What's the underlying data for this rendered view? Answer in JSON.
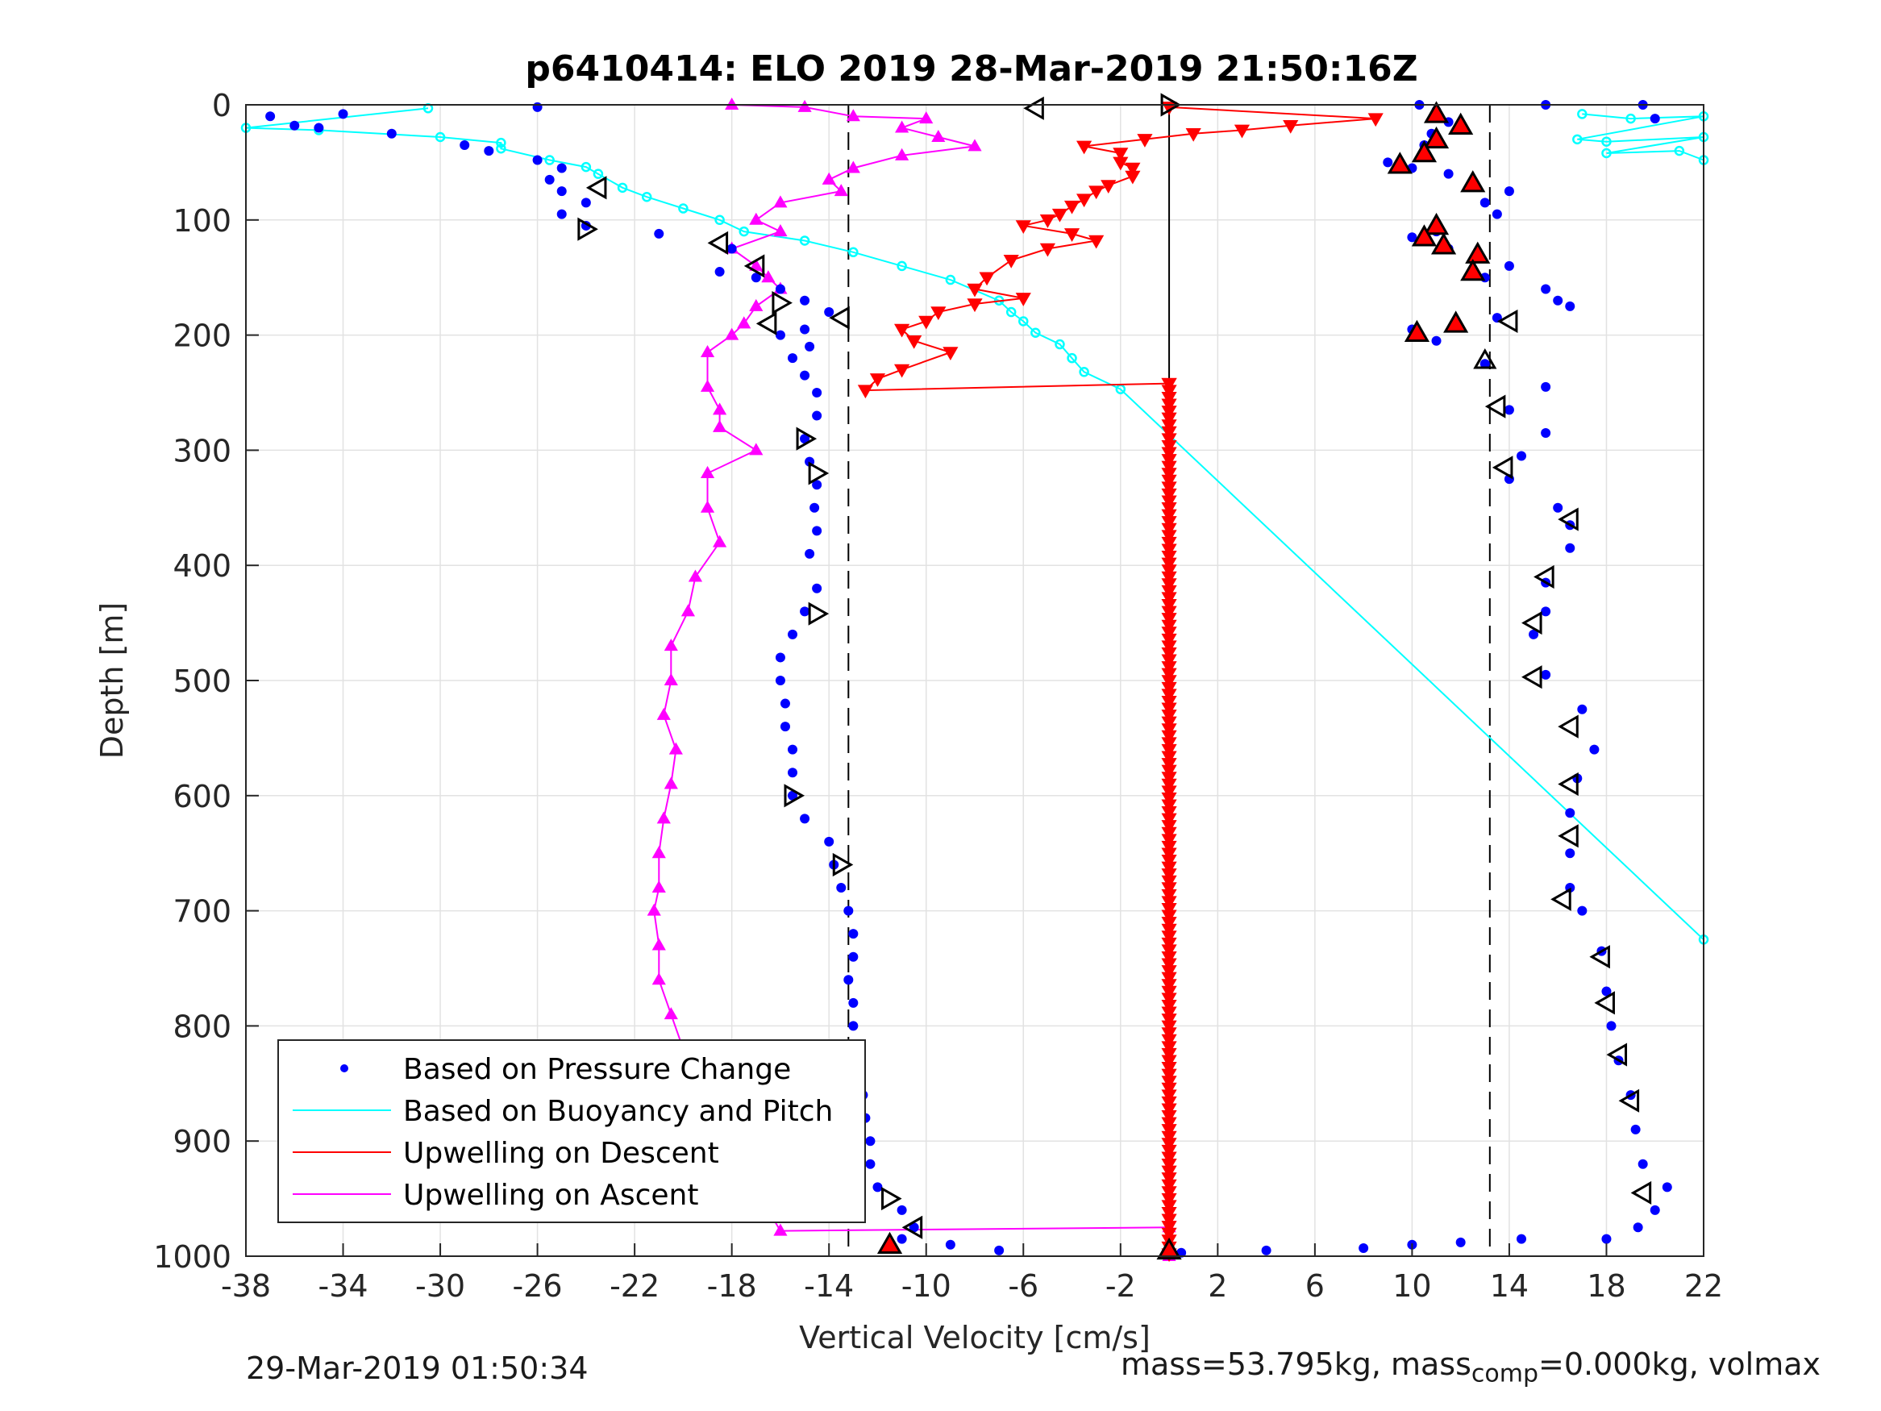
{
  "chart_data": {
    "type": "scatter",
    "title": "p6410414: ELO 2019 28-Mar-2019 21:50:16Z",
    "xlabel": "Vertical Velocity [cm/s]",
    "ylabel": "Depth [m]",
    "xlim": [
      -38,
      22
    ],
    "ylim": [
      0,
      1000
    ],
    "y_reversed": true,
    "x_ticks": [
      -38,
      -34,
      -30,
      -26,
      -22,
      -18,
      -14,
      -10,
      -6,
      -2,
      2,
      6,
      10,
      14,
      18,
      22
    ],
    "y_ticks": [
      0,
      100,
      200,
      300,
      400,
      500,
      600,
      700,
      800,
      900,
      1000
    ],
    "grid": true,
    "legend_position": "bottom-left",
    "legend": [
      {
        "label": "Based on Pressure Change",
        "color": "#0000ff",
        "style": "dot"
      },
      {
        "label": "Based on Buoyancy and Pitch",
        "color": "#00ffff",
        "style": "line"
      },
      {
        "label": "Upwelling on Descent",
        "color": "#ff0000",
        "style": "line"
      },
      {
        "label": "Upwelling on Ascent",
        "color": "#ff00ff",
        "style": "line"
      }
    ],
    "reference_lines": [
      {
        "x": -13.2,
        "style": "dashed",
        "color": "#000000"
      },
      {
        "x": 0,
        "style": "solid",
        "color": "#000000"
      },
      {
        "x": 13.2,
        "style": "dashed",
        "color": "#000000"
      }
    ],
    "series": [
      {
        "name": "Based on Pressure Change",
        "color": "#0000ff",
        "points_descent": [
          [
            -26,
            2
          ],
          [
            -37,
            10
          ],
          [
            -34,
            8
          ],
          [
            -36,
            18
          ],
          [
            -35,
            20
          ],
          [
            -32,
            25
          ],
          [
            -29,
            35
          ],
          [
            -28,
            40
          ],
          [
            -26,
            48
          ],
          [
            -25,
            55
          ],
          [
            -25.5,
            65
          ],
          [
            -25,
            75
          ],
          [
            -24,
            85
          ],
          [
            -25,
            95
          ],
          [
            -24,
            105
          ],
          [
            -21,
            112
          ],
          [
            -18,
            125
          ],
          [
            -18.5,
            145
          ],
          [
            -17,
            150
          ],
          [
            -16,
            160
          ],
          [
            -15,
            170
          ],
          [
            -14,
            180
          ],
          [
            -15,
            195
          ],
          [
            -16,
            200
          ],
          [
            -14.8,
            210
          ],
          [
            -15.5,
            220
          ],
          [
            -15,
            235
          ],
          [
            -14.5,
            250
          ],
          [
            -14.5,
            270
          ],
          [
            -15,
            290
          ],
          [
            -14.8,
            310
          ],
          [
            -14.5,
            330
          ],
          [
            -14.6,
            350
          ],
          [
            -14.5,
            370
          ],
          [
            -14.8,
            390
          ],
          [
            -14.5,
            420
          ],
          [
            -15,
            440
          ],
          [
            -15.5,
            460
          ],
          [
            -16,
            480
          ],
          [
            -16,
            500
          ],
          [
            -15.8,
            520
          ],
          [
            -15.8,
            540
          ],
          [
            -15.5,
            560
          ],
          [
            -15.5,
            580
          ],
          [
            -15.5,
            600
          ],
          [
            -15,
            620
          ],
          [
            -14,
            640
          ],
          [
            -13.8,
            660
          ],
          [
            -13.5,
            680
          ],
          [
            -13.2,
            700
          ],
          [
            -13,
            720
          ],
          [
            -13,
            740
          ],
          [
            -13.2,
            760
          ],
          [
            -13,
            780
          ],
          [
            -13,
            800
          ],
          [
            -13,
            820
          ],
          [
            -12.8,
            840
          ],
          [
            -12.6,
            860
          ],
          [
            -12.5,
            880
          ],
          [
            -12.3,
            900
          ],
          [
            -12.3,
            920
          ],
          [
            -12,
            940
          ],
          [
            -11,
            960
          ],
          [
            -10.5,
            975
          ],
          [
            -11,
            985
          ],
          [
            -9,
            990
          ],
          [
            -7,
            995
          ],
          [
            0.5,
            997
          ],
          [
            4,
            995
          ],
          [
            8,
            993
          ],
          [
            10,
            990
          ],
          [
            12,
            988
          ],
          [
            14.5,
            985
          ]
        ],
        "points_ascent": [
          [
            10.3,
            0
          ],
          [
            15.5,
            0
          ],
          [
            19.5,
            0
          ],
          [
            11,
            5
          ],
          [
            20,
            12
          ],
          [
            11.5,
            15
          ],
          [
            10.8,
            25
          ],
          [
            10.5,
            35
          ],
          [
            9,
            50
          ],
          [
            10,
            55
          ],
          [
            11.5,
            60
          ],
          [
            12.5,
            70
          ],
          [
            14,
            75
          ],
          [
            13,
            85
          ],
          [
            13.5,
            95
          ],
          [
            11,
            110
          ],
          [
            10,
            115
          ],
          [
            11.5,
            125
          ],
          [
            12.7,
            130
          ],
          [
            14,
            140
          ],
          [
            13,
            150
          ],
          [
            15.5,
            160
          ],
          [
            16,
            170
          ],
          [
            16.5,
            175
          ],
          [
            13.5,
            185
          ],
          [
            10,
            195
          ],
          [
            11,
            205
          ],
          [
            13,
            225
          ],
          [
            15.5,
            245
          ],
          [
            14,
            265
          ],
          [
            15.5,
            285
          ],
          [
            14.5,
            305
          ],
          [
            14,
            325
          ],
          [
            16,
            350
          ],
          [
            16.5,
            365
          ],
          [
            16.5,
            385
          ],
          [
            15.5,
            415
          ],
          [
            15.5,
            440
          ],
          [
            15,
            460
          ],
          [
            15.5,
            495
          ],
          [
            17,
            525
          ],
          [
            17.5,
            560
          ],
          [
            16.8,
            585
          ],
          [
            16.5,
            615
          ],
          [
            16.5,
            650
          ],
          [
            16.5,
            680
          ],
          [
            17,
            700
          ],
          [
            17.8,
            735
          ],
          [
            18,
            770
          ],
          [
            18.2,
            800
          ],
          [
            18.5,
            830
          ],
          [
            19,
            860
          ],
          [
            19.2,
            890
          ],
          [
            19.5,
            920
          ],
          [
            20.5,
            940
          ],
          [
            20,
            960
          ],
          [
            19.3,
            975
          ],
          [
            18,
            985
          ]
        ]
      },
      {
        "name": "Based on Buoyancy and Pitch",
        "color": "#00ffff",
        "points": [
          [
            -30.5,
            3
          ],
          [
            -38,
            20
          ],
          [
            -35,
            22
          ],
          [
            -30,
            28
          ],
          [
            -27.5,
            33
          ],
          [
            -27.5,
            38
          ],
          [
            -25.5,
            48
          ],
          [
            -24,
            54
          ],
          [
            -23.5,
            60
          ],
          [
            -22.5,
            72
          ],
          [
            -21.5,
            80
          ],
          [
            -20,
            90
          ],
          [
            -18.5,
            100
          ],
          [
            -17.5,
            110
          ],
          [
            -15,
            118
          ],
          [
            -13,
            128
          ],
          [
            -11,
            140
          ],
          [
            -9,
            152
          ],
          [
            -7,
            170
          ],
          [
            -6.5,
            180
          ],
          [
            -6,
            188
          ],
          [
            -5.5,
            198
          ],
          [
            -4.5,
            208
          ],
          [
            -4,
            220
          ],
          [
            -3.5,
            232
          ],
          [
            -2,
            247
          ],
          [
            22,
            725
          ]
        ],
        "points_surface_right": [
          [
            17,
            8
          ],
          [
            19,
            12
          ],
          [
            22,
            10
          ],
          [
            16.8,
            30
          ],
          [
            18,
            32
          ],
          [
            22,
            28
          ],
          [
            18,
            42
          ],
          [
            21,
            40
          ],
          [
            22,
            48
          ]
        ]
      },
      {
        "name": "Upwelling on Descent",
        "color": "#ff0000",
        "points": [
          [
            0,
            2
          ],
          [
            8.5,
            12
          ],
          [
            5,
            18
          ],
          [
            3,
            22
          ],
          [
            1,
            25
          ],
          [
            -1,
            30
          ],
          [
            -3.5,
            36
          ],
          [
            -2,
            42
          ],
          [
            -2,
            50
          ],
          [
            -1.5,
            55
          ],
          [
            -1.5,
            62
          ],
          [
            -2.5,
            70
          ],
          [
            -3,
            75
          ],
          [
            -3.5,
            82
          ],
          [
            -4,
            88
          ],
          [
            -4.5,
            95
          ],
          [
            -5,
            100
          ],
          [
            -6,
            105
          ],
          [
            -4,
            112
          ],
          [
            -3,
            118
          ],
          [
            -5,
            125
          ],
          [
            -6.5,
            135
          ],
          [
            -7.5,
            150
          ],
          [
            -8,
            160
          ],
          [
            -6,
            168
          ],
          [
            -8,
            173
          ],
          [
            -9.5,
            180
          ],
          [
            -10,
            188
          ],
          [
            -11,
            195
          ],
          [
            -10.5,
            205
          ],
          [
            -9,
            215
          ],
          [
            -11,
            230
          ],
          [
            -12,
            238
          ],
          [
            -12.5,
            248
          ],
          [
            0,
            242
          ],
          [
            0,
            1000
          ]
        ]
      },
      {
        "name": "Upwelling on Ascent",
        "color": "#ff00ff",
        "points": [
          [
            -18,
            0
          ],
          [
            -15,
            2
          ],
          [
            -13,
            10
          ],
          [
            -10,
            12
          ],
          [
            -11,
            20
          ],
          [
            -9.5,
            28
          ],
          [
            -8,
            36
          ],
          [
            -11,
            44
          ],
          [
            -13,
            55
          ],
          [
            -14,
            65
          ],
          [
            -13.5,
            75
          ],
          [
            -16,
            85
          ],
          [
            -17,
            100
          ],
          [
            -16,
            110
          ],
          [
            -18,
            125
          ],
          [
            -17,
            140
          ],
          [
            -16.5,
            150
          ],
          [
            -16,
            160
          ],
          [
            -17,
            175
          ],
          [
            -17.5,
            190
          ],
          [
            -18,
            200
          ],
          [
            -19,
            215
          ],
          [
            -19,
            245
          ],
          [
            -18.5,
            265
          ],
          [
            -18.5,
            280
          ],
          [
            -17,
            300
          ],
          [
            -19,
            320
          ],
          [
            -19,
            350
          ],
          [
            -18.5,
            380
          ],
          [
            -19.5,
            410
          ],
          [
            -19.8,
            440
          ],
          [
            -20.5,
            470
          ],
          [
            -20.5,
            500
          ],
          [
            -20.8,
            530
          ],
          [
            -20.3,
            560
          ],
          [
            -20.5,
            590
          ],
          [
            -20.8,
            620
          ],
          [
            -21,
            650
          ],
          [
            -21,
            680
          ],
          [
            -21.2,
            700
          ],
          [
            -21,
            730
          ],
          [
            -21,
            760
          ],
          [
            -20.5,
            790
          ],
          [
            -20,
            820
          ],
          [
            -19,
            850
          ],
          [
            -18.5,
            880
          ],
          [
            -18,
            900
          ],
          [
            -17.5,
            920
          ],
          [
            -17,
            940
          ],
          [
            -16.5,
            960
          ],
          [
            -16,
            978
          ],
          [
            0,
            975
          ],
          [
            0,
            1000
          ]
        ]
      }
    ],
    "markers": {
      "open_triangles_left": [
        [
          -5.5,
          3
        ],
        [
          -23.5,
          72
        ],
        [
          -17,
          140
        ],
        [
          -16.5,
          190
        ],
        [
          -13.5,
          185
        ],
        [
          -18.5,
          120
        ],
        [
          14,
          188
        ],
        [
          13.5,
          262
        ],
        [
          13.8,
          315
        ],
        [
          16.5,
          360
        ],
        [
          15.5,
          410
        ],
        [
          15,
          450
        ],
        [
          15,
          497
        ],
        [
          16.5,
          540
        ],
        [
          16.5,
          590
        ],
        [
          16.5,
          635
        ],
        [
          16.2,
          690
        ],
        [
          17.8,
          740
        ],
        [
          18,
          780
        ],
        [
          18.5,
          825
        ],
        [
          19,
          865
        ],
        [
          19.5,
          945
        ],
        [
          -10.5,
          975
        ]
      ],
      "open_triangles_right": [
        [
          0,
          0
        ],
        [
          -24,
          108
        ],
        [
          -16,
          172
        ],
        [
          -15,
          290
        ],
        [
          -14.5,
          320
        ],
        [
          -14.5,
          442
        ],
        [
          -15.5,
          600
        ],
        [
          -13.5,
          660
        ],
        [
          -11.5,
          950
        ]
      ],
      "open_triangles_up": [
        [
          13,
          222
        ]
      ],
      "filled_red_triangles": [
        [
          11,
          8
        ],
        [
          12,
          18
        ],
        [
          11,
          30
        ],
        [
          10.5,
          42
        ],
        [
          9.5,
          52
        ],
        [
          12.5,
          68
        ],
        [
          11,
          105
        ],
        [
          10.5,
          115
        ],
        [
          11.3,
          122
        ],
        [
          12.7,
          130
        ],
        [
          12.5,
          145
        ],
        [
          11.8,
          190
        ],
        [
          10.2,
          198
        ],
        [
          -11.5,
          990
        ],
        [
          0,
          995
        ]
      ]
    }
  },
  "footer": {
    "timestamp": "29-Mar-2019 01:50:34",
    "mass_text": "mass=53.795kg, mass",
    "mass_sub": "comp",
    "mass_tail": "=0.000kg, volmax"
  }
}
